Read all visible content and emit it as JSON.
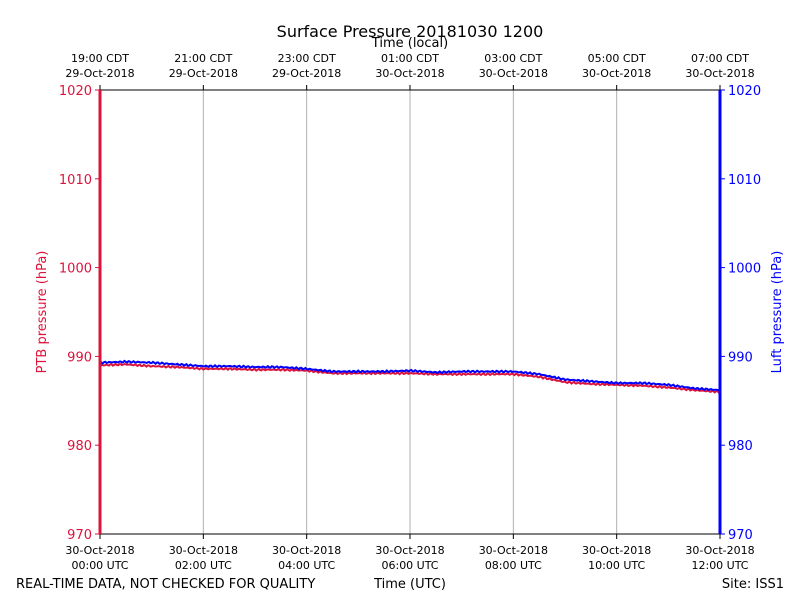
{
  "chart_data": {
    "type": "line",
    "title": "Surface Pressure 20181030 1200",
    "top_xlabel": "Time (local)",
    "xlabel": "Time (UTC)",
    "ylabel_left": "PTB pressure (hPa)",
    "ylabel_right": "Luft pressure (hPa)",
    "ylim": [
      970,
      1020
    ],
    "yticks": [
      970,
      980,
      990,
      1000,
      1010,
      1020
    ],
    "xlim_hours": [
      0,
      12
    ],
    "grid": "vertical",
    "x_ticks_bottom": [
      {
        "hour": 0,
        "date": "30-Oct-2018",
        "time": "00:00 UTC"
      },
      {
        "hour": 2,
        "date": "30-Oct-2018",
        "time": "02:00 UTC"
      },
      {
        "hour": 4,
        "date": "30-Oct-2018",
        "time": "04:00 UTC"
      },
      {
        "hour": 6,
        "date": "30-Oct-2018",
        "time": "06:00 UTC"
      },
      {
        "hour": 8,
        "date": "30-Oct-2018",
        "time": "08:00 UTC"
      },
      {
        "hour": 10,
        "date": "30-Oct-2018",
        "time": "10:00 UTC"
      },
      {
        "hour": 12,
        "date": "30-Oct-2018",
        "time": "12:00 UTC"
      }
    ],
    "x_ticks_top": [
      {
        "hour": 0,
        "time": "19:00 CDT",
        "date": "29-Oct-2018"
      },
      {
        "hour": 2,
        "time": "21:00 CDT",
        "date": "29-Oct-2018"
      },
      {
        "hour": 4,
        "time": "23:00 CDT",
        "date": "29-Oct-2018"
      },
      {
        "hour": 6,
        "time": "01:00 CDT",
        "date": "30-Oct-2018"
      },
      {
        "hour": 8,
        "time": "03:00 CDT",
        "date": "30-Oct-2018"
      },
      {
        "hour": 10,
        "time": "05:00 CDT",
        "date": "30-Oct-2018"
      },
      {
        "hour": 12,
        "time": "07:00 CDT",
        "date": "30-Oct-2018"
      }
    ],
    "series": [
      {
        "name": "PTB pressure",
        "axis": "left",
        "color": "#dc143c",
        "x": [
          0,
          0.5,
          1,
          1.5,
          2,
          2.5,
          3,
          3.5,
          4,
          4.5,
          5,
          5.5,
          6,
          6.5,
          7,
          7.5,
          8,
          8.5,
          9,
          9.5,
          10,
          10.5,
          11,
          11.5,
          12
        ],
        "y": [
          989.0,
          989.1,
          988.9,
          988.8,
          988.6,
          988.6,
          988.5,
          988.5,
          988.4,
          988.1,
          988.1,
          988.1,
          988.1,
          988.0,
          988.0,
          988.0,
          988.0,
          987.7,
          987.1,
          986.9,
          986.8,
          986.7,
          986.5,
          986.2,
          986.0
        ]
      },
      {
        "name": "Luft pressure",
        "axis": "right",
        "color": "#0000ff",
        "x": [
          0,
          0.5,
          1,
          1.5,
          2,
          2.5,
          3,
          3.5,
          4,
          4.5,
          5,
          5.5,
          6,
          6.5,
          7,
          7.5,
          8,
          8.5,
          9,
          9.5,
          10,
          10.5,
          11,
          11.5,
          12
        ],
        "y": [
          989.3,
          989.4,
          989.3,
          989.1,
          988.9,
          988.9,
          988.8,
          988.8,
          988.6,
          988.3,
          988.3,
          988.3,
          988.4,
          988.2,
          988.3,
          988.3,
          988.3,
          988.0,
          987.4,
          987.2,
          987.0,
          987.0,
          986.8,
          986.4,
          986.2
        ]
      }
    ]
  },
  "footer": {
    "disclaimer": "REAL-TIME DATA, NOT CHECKED FOR QUALITY",
    "site": "Site: ISS1"
  }
}
